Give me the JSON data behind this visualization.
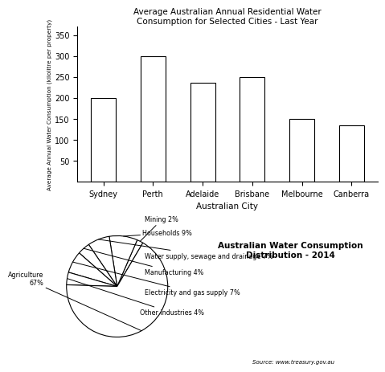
{
  "bar_cities": [
    "Sydney",
    "Perth",
    "Adelaide",
    "Brisbane",
    "Melbourne",
    "Canberra"
  ],
  "bar_values": [
    200,
    300,
    237,
    250,
    150,
    135
  ],
  "bar_title": "Average Australian Annual Residential Water\nConsumption for Selected Cities - Last Year",
  "bar_xlabel": "Australian City",
  "bar_ylabel": "Average Annual Water Consumption (kilolitre per property)",
  "bar_ylim": [
    0,
    370
  ],
  "bar_yticks": [
    50,
    100,
    150,
    200,
    250,
    300,
    350
  ],
  "pie_values": [
    2,
    9,
    7,
    4,
    7,
    4,
    67
  ],
  "pie_title": "Australian Water Consumption\nDistribution - 2014",
  "pie_source": "Source: www.treasury.gov.au",
  "pie_label_texts": [
    "Mining 2%",
    "Households 9%",
    "Water supply, sewage and drainage 7%",
    "Manufacturing 4%",
    "Electricity and gas supply 7%",
    "Other industries 4%",
    "Agriculture\n67%"
  ],
  "pie_startangle": 59.4
}
